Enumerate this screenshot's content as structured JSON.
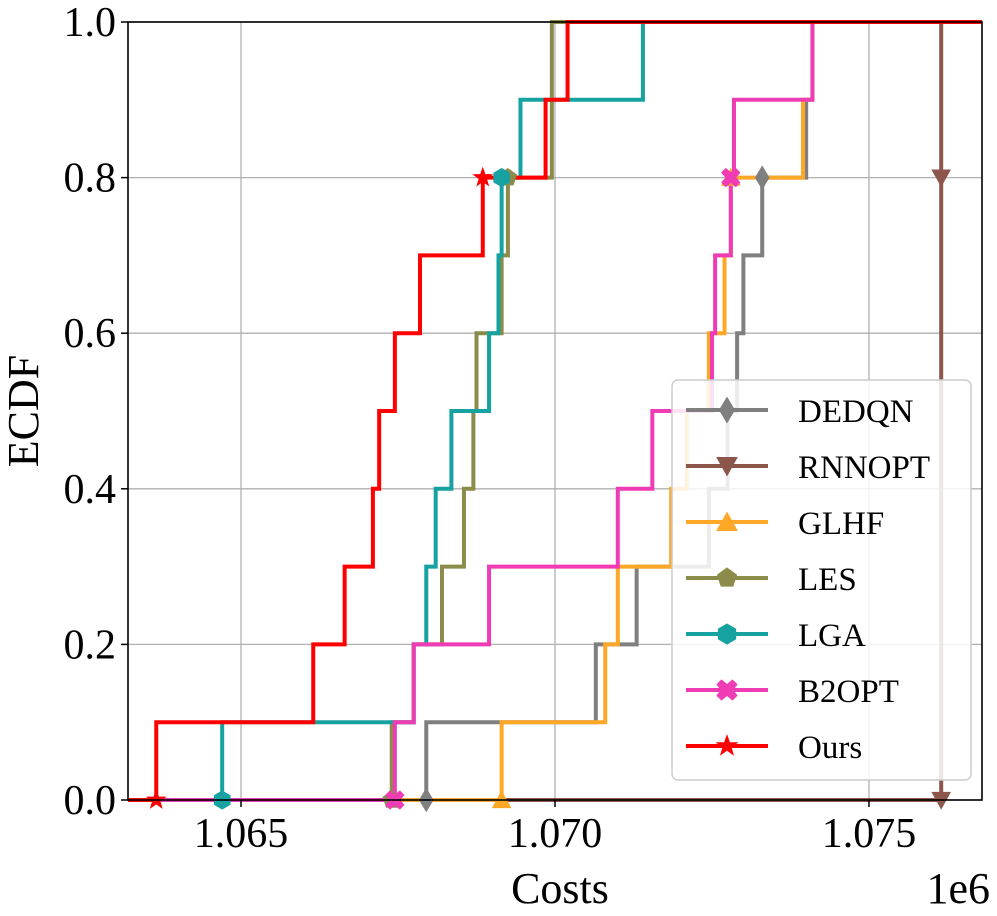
{
  "chart_data": {
    "type": "line",
    "subtype": "ecdf-step",
    "title": "",
    "xlabel": "Costs",
    "ylabel": "ECDF",
    "x_offset_label": "1e6",
    "xlim": [
      1.0632,
      1.0768
    ],
    "ylim": [
      0.0,
      1.0
    ],
    "grid": true,
    "legend_position": "lower-right",
    "x_ticks": [
      {
        "value": 1.065,
        "label": "1.065"
      },
      {
        "value": 1.07,
        "label": "1.070"
      },
      {
        "value": 1.075,
        "label": "1.075"
      }
    ],
    "y_ticks": [
      {
        "value": 0.0,
        "label": "0.0"
      },
      {
        "value": 0.2,
        "label": "0.2"
      },
      {
        "value": 0.4,
        "label": "0.4"
      },
      {
        "value": 0.6,
        "label": "0.6"
      },
      {
        "value": 0.8,
        "label": "0.8"
      },
      {
        "value": 1.0,
        "label": "1.0"
      }
    ],
    "series": [
      {
        "name": "DEDQN",
        "color": "#7f7f7f",
        "marker": "diamond",
        "x": [
          1.06795,
          1.07065,
          1.0713,
          1.07245,
          1.07275,
          1.0729,
          1.073,
          1.0733,
          1.074,
          1.0741
        ]
      },
      {
        "name": "RNNOPT",
        "color": "#8c564b",
        "marker": "triangle-down",
        "x": [
          1.07615,
          1.07615,
          1.07615,
          1.07615,
          1.07615,
          1.07615,
          1.07615,
          1.07615,
          1.07615,
          1.07615
        ]
      },
      {
        "name": "GLHF",
        "color": "#ffa726",
        "marker": "triangle-up",
        "x": [
          1.06915,
          1.0708,
          1.071,
          1.07185,
          1.0721,
          1.07245,
          1.0727,
          1.0728,
          1.07395,
          1.0741
        ]
      },
      {
        "name": "LES",
        "color": "#8c8c4a",
        "marker": "pentagon",
        "x": [
          1.0674,
          1.06775,
          1.0682,
          1.06855,
          1.0687,
          1.06875,
          1.06915,
          1.06925,
          1.06995,
          1.06995
        ]
      },
      {
        "name": "LGA",
        "color": "#17a2a2",
        "marker": "hexagon",
        "x": [
          1.0647,
          1.06775,
          1.06795,
          1.0681,
          1.06835,
          1.06895,
          1.0691,
          1.06915,
          1.06945,
          1.0714
        ]
      },
      {
        "name": "B2OPT",
        "color": "#f03cb4",
        "marker": "x-filled",
        "x": [
          1.06745,
          1.06775,
          1.06895,
          1.071,
          1.07155,
          1.0725,
          1.07255,
          1.0728,
          1.07285,
          1.0741
        ]
      },
      {
        "name": "Ours",
        "color": "#ff0000",
        "marker": "star",
        "x": [
          1.06365,
          1.06615,
          1.06665,
          1.0671,
          1.0672,
          1.06745,
          1.06785,
          1.06885,
          1.06985,
          1.0702
        ]
      }
    ]
  }
}
